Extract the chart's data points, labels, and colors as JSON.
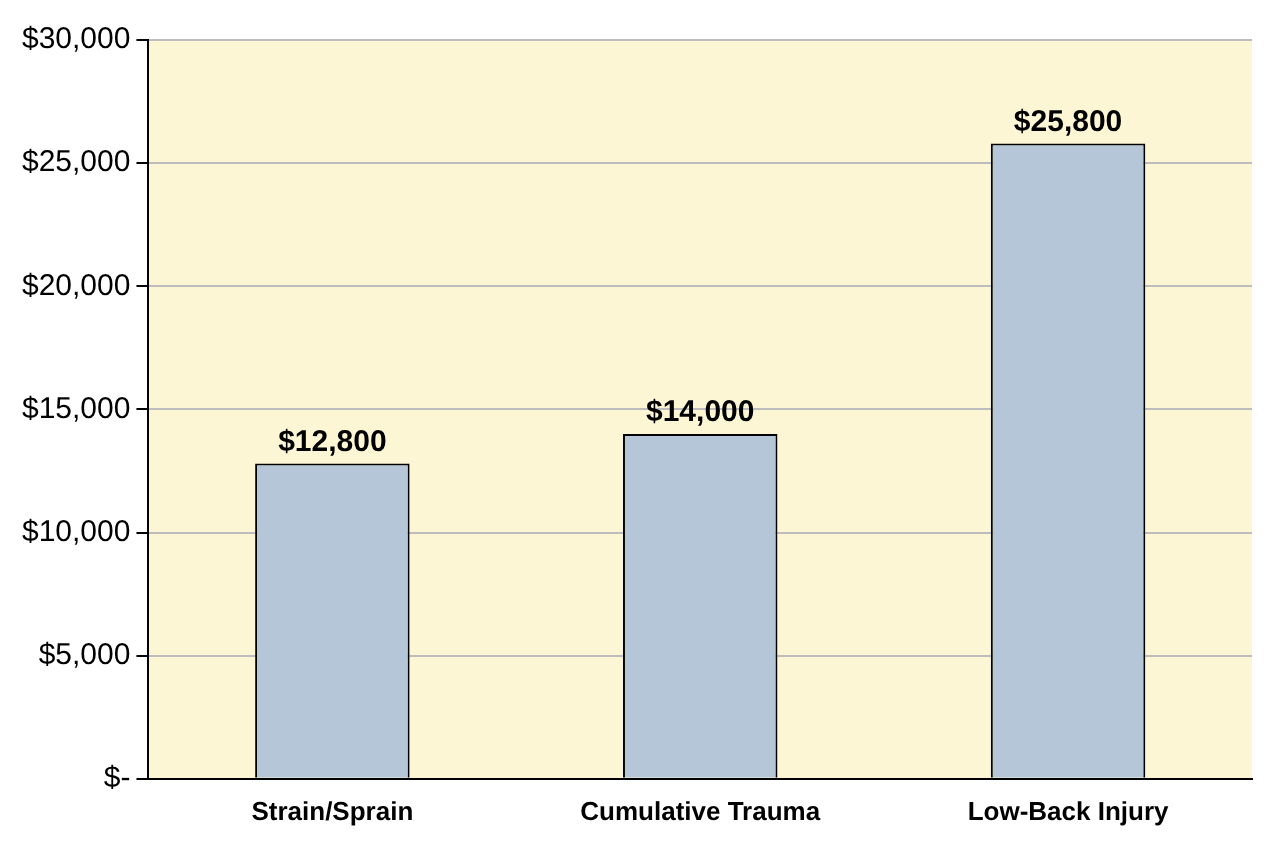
{
  "chart_data": {
    "type": "bar",
    "categories": [
      "Strain/Sprain",
      "Cumulative Trauma",
      "Low-Back Injury"
    ],
    "values": [
      12800,
      14000,
      25800
    ],
    "color": "#b4c6d8",
    "value_labels": [
      "$12,800",
      "$14,000",
      "$25,800"
    ],
    "ylim": [
      0,
      30000
    ],
    "yticks": [
      {
        "value": 0,
        "label": "$-"
      },
      {
        "value": 5000,
        "label": "$5,000"
      },
      {
        "value": 10000,
        "label": "$10,000"
      },
      {
        "value": 15000,
        "label": "$15,000"
      },
      {
        "value": 20000,
        "label": "$20,000"
      },
      {
        "value": 25000,
        "label": "$25,000"
      },
      {
        "value": 30000,
        "label": "$30,000"
      }
    ],
    "grid": "y",
    "legend": false
  }
}
